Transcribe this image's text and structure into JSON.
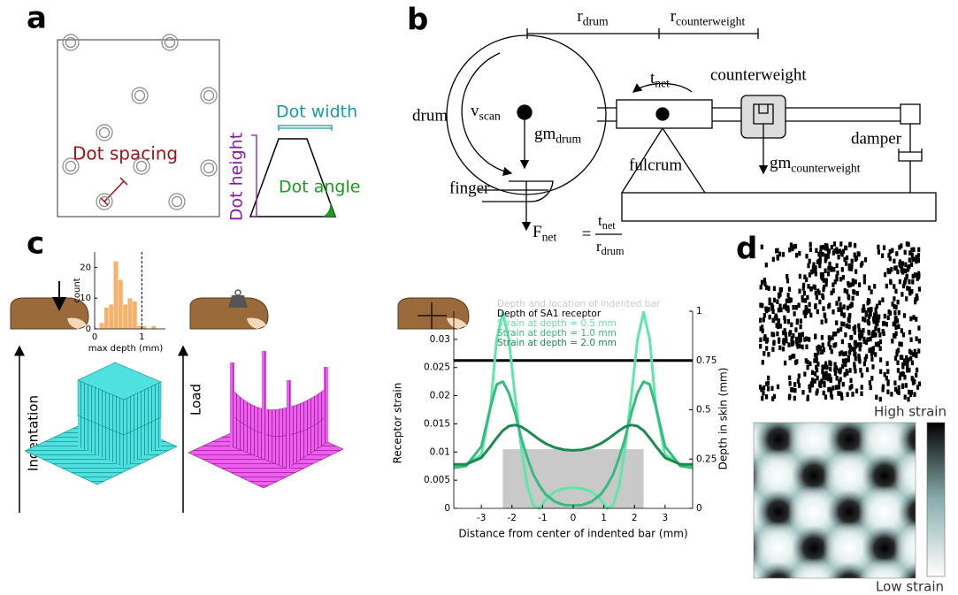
{
  "panels": {
    "labels": [
      "a",
      "b",
      "c",
      "d"
    ],
    "a": {
      "dot_spacing": "Dot spacing",
      "dot_width": "Dot width",
      "dot_height": "Dot height",
      "dot_angle": "Dot angle"
    },
    "b": {
      "r_drum": {
        "base": "r",
        "sub": "drum"
      },
      "r_counterweight": {
        "base": "r",
        "sub": "counterweight"
      },
      "t_net": {
        "base": "t",
        "sub": "net"
      },
      "counterweight": "counterweight",
      "drum": "drum",
      "v_scan": {
        "base": "v",
        "sub": "scan"
      },
      "gm_drum": {
        "base": "gm",
        "sub": "drum"
      },
      "damper": "damper",
      "fulcrum": "fulcrum",
      "finger": "finger",
      "gm_counterweight": {
        "base": "gm",
        "sub": "counterweight"
      },
      "f_net": {
        "lhs": {
          "base": "F",
          "sub": "net"
        },
        "equals": "=",
        "numerator": {
          "base": "t",
          "sub": "net"
        },
        "denominator": {
          "base": "r",
          "sub": "drum"
        }
      }
    },
    "c": {
      "indentation": "Indentation",
      "load": "Load"
    },
    "d": {
      "high": "High strain",
      "low": "Low strain"
    }
  },
  "chart_data": [
    {
      "type": "histogram",
      "xlabel": "max depth (mm)",
      "ylabel": "count",
      "color": "#f6b26b",
      "bins": [
        0.1,
        0.2,
        0.3,
        0.4,
        0.5,
        0.6,
        0.7,
        0.8,
        0.9,
        1.0,
        1.1,
        1.2,
        1.3
      ],
      "counts": [
        2,
        7,
        8,
        22,
        16,
        8,
        10,
        9,
        1,
        1,
        0,
        1
      ],
      "xlim": [
        0,
        1.5
      ],
      "ylim": [
        0,
        25
      ],
      "xticks": [
        0,
        1
      ],
      "yticks": [
        0,
        10,
        20
      ],
      "threshold": 1
    },
    {
      "type": "line",
      "xlabel": "Distance from center of indented bar (mm)",
      "ylabel": "Receptor strain",
      "y2label": "Depth in skin (mm)",
      "x": [
        -3.9,
        -3.5,
        -3,
        -2.7,
        -2.5,
        -2.3,
        -2.1,
        -1.9,
        -1.7,
        -1.5,
        -1.3,
        -1.1,
        -0.9,
        -0.6,
        -0.3,
        0,
        0.3,
        0.6,
        0.9,
        1.1,
        1.3,
        1.5,
        1.7,
        1.9,
        2.1,
        2.3,
        2.5,
        2.7,
        3,
        3.5,
        3.9
      ],
      "region": {
        "name": "Depth and location of indented bar",
        "x": [
          -2.3,
          2.3
        ],
        "depth": 0.3,
        "color": "#c9c9c9",
        "axis": "y2"
      },
      "receptor": {
        "name": "Depth of SA1 receptor",
        "value": 0.75,
        "color": "#000000",
        "axis": "y2"
      },
      "series": [
        {
          "name": "Strain at depth = 0.5 mm",
          "color": "#5fe6a8",
          "values": [
            0.0077,
            0.0078,
            0.0095,
            0.018,
            0.03,
            0.0348,
            0.03,
            0.02,
            0.011,
            0.004,
            0.0005,
            0,
            0.0015,
            0.003,
            0.0035,
            0.0037,
            0.0035,
            0.003,
            0.0015,
            0,
            0.0005,
            0.004,
            0.011,
            0.02,
            0.03,
            0.0348,
            0.03,
            0.018,
            0.0095,
            0.0078,
            0.0077
          ]
        },
        {
          "name": "Strain at depth = 1.0 mm",
          "color": "#34bd7c",
          "values": [
            0.0072,
            0.0075,
            0.011,
            0.018,
            0.022,
            0.0225,
            0.0205,
            0.017,
            0.0125,
            0.009,
            0.006,
            0.004,
            0.0025,
            0.0012,
            0.0006,
            0.0005,
            0.0006,
            0.0012,
            0.0025,
            0.004,
            0.006,
            0.009,
            0.0125,
            0.017,
            0.0205,
            0.0225,
            0.022,
            0.018,
            0.011,
            0.0075,
            0.0072
          ]
        },
        {
          "name": "Strain at depth = 2.0 mm",
          "color": "#1b8a4f",
          "values": [
            0.0078,
            0.0078,
            0.009,
            0.011,
            0.0125,
            0.0138,
            0.0146,
            0.0148,
            0.0145,
            0.0138,
            0.013,
            0.0122,
            0.0115,
            0.0108,
            0.0104,
            0.0103,
            0.0104,
            0.0108,
            0.0115,
            0.0122,
            0.013,
            0.0138,
            0.0145,
            0.0148,
            0.0146,
            0.0138,
            0.0125,
            0.011,
            0.009,
            0.0078,
            0.0078
          ]
        }
      ],
      "xlim": [
        -3.9,
        3.9
      ],
      "ylim": [
        0,
        0.035
      ],
      "y2lim": [
        0,
        1
      ],
      "xticks": [
        -3,
        -2,
        -1,
        0,
        1,
        2,
        3
      ],
      "yticks": [
        0,
        0.005,
        0.01,
        0.015,
        0.02,
        0.025,
        0.03
      ],
      "y2ticks": [
        0,
        0.25,
        0.5,
        0.75,
        1
      ]
    }
  ]
}
